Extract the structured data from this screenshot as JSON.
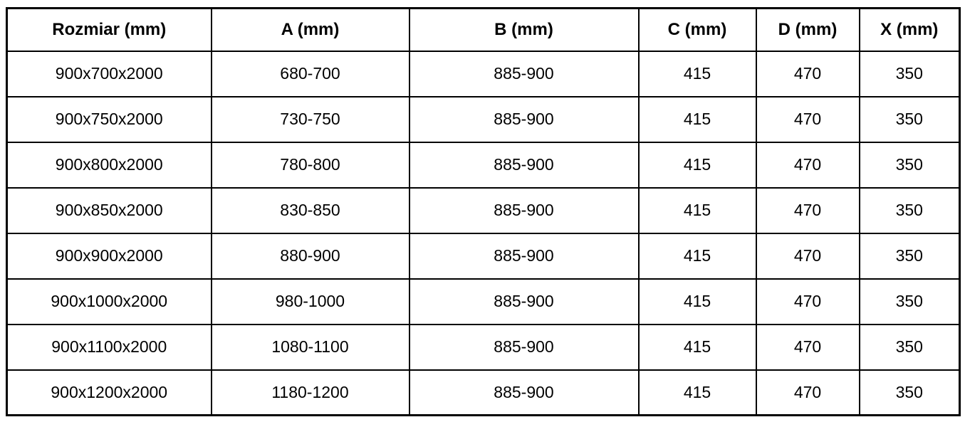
{
  "table": {
    "columns": [
      {
        "key": "rozmiar",
        "label": "Rozmiar (mm)"
      },
      {
        "key": "a",
        "label": "A (mm)"
      },
      {
        "key": "b",
        "label": "B (mm)"
      },
      {
        "key": "c",
        "label": "C (mm)"
      },
      {
        "key": "d",
        "label": "D (mm)"
      },
      {
        "key": "x",
        "label": "X (mm)"
      }
    ],
    "rows": [
      [
        "900x700x2000",
        "680-700",
        "885-900",
        "415",
        "470",
        "350"
      ],
      [
        "900x750x2000",
        "730-750",
        "885-900",
        "415",
        "470",
        "350"
      ],
      [
        "900x800x2000",
        "780-800",
        "885-900",
        "415",
        "470",
        "350"
      ],
      [
        "900x850x2000",
        "830-850",
        "885-900",
        "415",
        "470",
        "350"
      ],
      [
        "900x900x2000",
        "880-900",
        "885-900",
        "415",
        "470",
        "350"
      ],
      [
        "900x1000x2000",
        "980-1000",
        "885-900",
        "415",
        "470",
        "350"
      ],
      [
        "900x1100x2000",
        "1080-1100",
        "885-900",
        "415",
        "470",
        "350"
      ],
      [
        "900x1200x2000",
        "1180-1200",
        "885-900",
        "415",
        "470",
        "350"
      ]
    ]
  },
  "colors": {
    "border": "#000000",
    "text": "#000000",
    "background": "#ffffff"
  }
}
